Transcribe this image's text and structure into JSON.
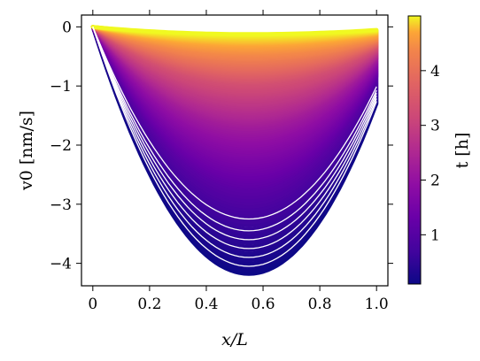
{
  "chart_data": {
    "type": "line",
    "title": "",
    "xlabel": "x/L",
    "ylabel": "v0 [nm/s]",
    "xlim": [
      -0.04,
      1.04
    ],
    "ylim": [
      -4.38,
      0.2
    ],
    "x_ticks": [
      0.0,
      0.2,
      0.4,
      0.6,
      0.8,
      1.0
    ],
    "x_tick_labels": [
      "0",
      "0.2",
      "0.4",
      "0.6",
      "0.8",
      "1.0"
    ],
    "y_ticks": [
      0,
      -1,
      -2,
      -3,
      -4
    ],
    "y_tick_labels": [
      "0",
      "−1",
      "−2",
      "−3",
      "−4"
    ],
    "grid": false,
    "legend": "none",
    "colormap": "plasma",
    "colorbar": {
      "label": "t [h]",
      "range": [
        0.1,
        5.0
      ],
      "ticks": [
        1,
        2,
        3,
        4
      ],
      "tick_labels": [
        "1",
        "2",
        "3",
        "4"
      ],
      "position": "right"
    },
    "series_description": "Family of velocity profiles v0(x/L) shaded by time t; minimum near x/L=0.55",
    "series": [
      {
        "t": 0.1,
        "x_of_min": 0.55,
        "v_min": -4.18,
        "v_left": 0.0,
        "v_right": -1.3
      },
      {
        "t": 0.3,
        "x_of_min": 0.55,
        "v_min": -3.85,
        "v_left": 0.0,
        "v_right": -1.2
      },
      {
        "t": 0.6,
        "x_of_min": 0.55,
        "v_min": -3.35,
        "v_left": 0.0,
        "v_right": -1.05
      },
      {
        "t": 1.0,
        "x_of_min": 0.55,
        "v_min": -2.75,
        "v_left": 0.0,
        "v_right": -0.85
      },
      {
        "t": 1.5,
        "x_of_min": 0.55,
        "v_min": -2.2,
        "v_left": 0.0,
        "v_right": -0.7
      },
      {
        "t": 2.0,
        "x_of_min": 0.55,
        "v_min": -1.7,
        "v_left": 0.0,
        "v_right": -0.55
      },
      {
        "t": 3.0,
        "x_of_min": 0.55,
        "v_min": -0.95,
        "v_left": 0.0,
        "v_right": -0.35
      },
      {
        "t": 4.0,
        "x_of_min": 0.55,
        "v_min": -0.45,
        "v_left": 0.0,
        "v_right": -0.2
      },
      {
        "t": 5.0,
        "x_of_min": 0.55,
        "v_min": -0.12,
        "v_left": 0.0,
        "v_right": -0.05
      }
    ],
    "white_gap_curves_v_min": [
      -3.25,
      -3.45,
      -3.6,
      -3.75,
      -3.9,
      -4.05
    ]
  }
}
